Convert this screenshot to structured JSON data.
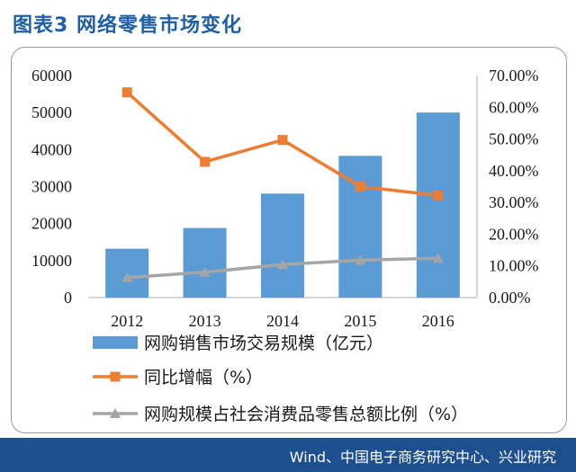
{
  "title": "图表3  网络零售市场变化",
  "source": "Wind、中国电子商务研究中心、兴业研究",
  "chart_data": {
    "type": "bar",
    "categories": [
      "2012",
      "2013",
      "2014",
      "2015",
      "2016"
    ],
    "y_left": {
      "ylim": [
        0,
        60000
      ],
      "ticks": [
        "0",
        "10000",
        "20000",
        "30000",
        "40000",
        "50000",
        "60000"
      ]
    },
    "y_right": {
      "ylim": [
        0,
        70
      ],
      "ticks": [
        "0.00%",
        "10.00%",
        "20.00%",
        "30.00%",
        "40.00%",
        "50.00%",
        "60.00%",
        "70.00%"
      ]
    },
    "grid": false,
    "legend_position": "bottom",
    "series": [
      {
        "name": "网购销售市场交易规模（亿元）",
        "type": "bar",
        "axis": "left",
        "color": "#5b9bd5",
        "values": [
          13200,
          18800,
          28100,
          38300,
          50000
        ]
      },
      {
        "name": "同比增幅（%）",
        "type": "line",
        "axis": "right",
        "color": "#ed7d31",
        "marker": "square",
        "values": [
          64.7,
          42.8,
          49.7,
          35.0,
          32.2
        ]
      },
      {
        "name": "网购规模占社会消费品零售总额比例（%）",
        "type": "line",
        "axis": "right",
        "color": "#a5a5a5",
        "marker": "triangle",
        "values": [
          6.3,
          8.0,
          10.4,
          11.8,
          12.4
        ]
      }
    ]
  }
}
